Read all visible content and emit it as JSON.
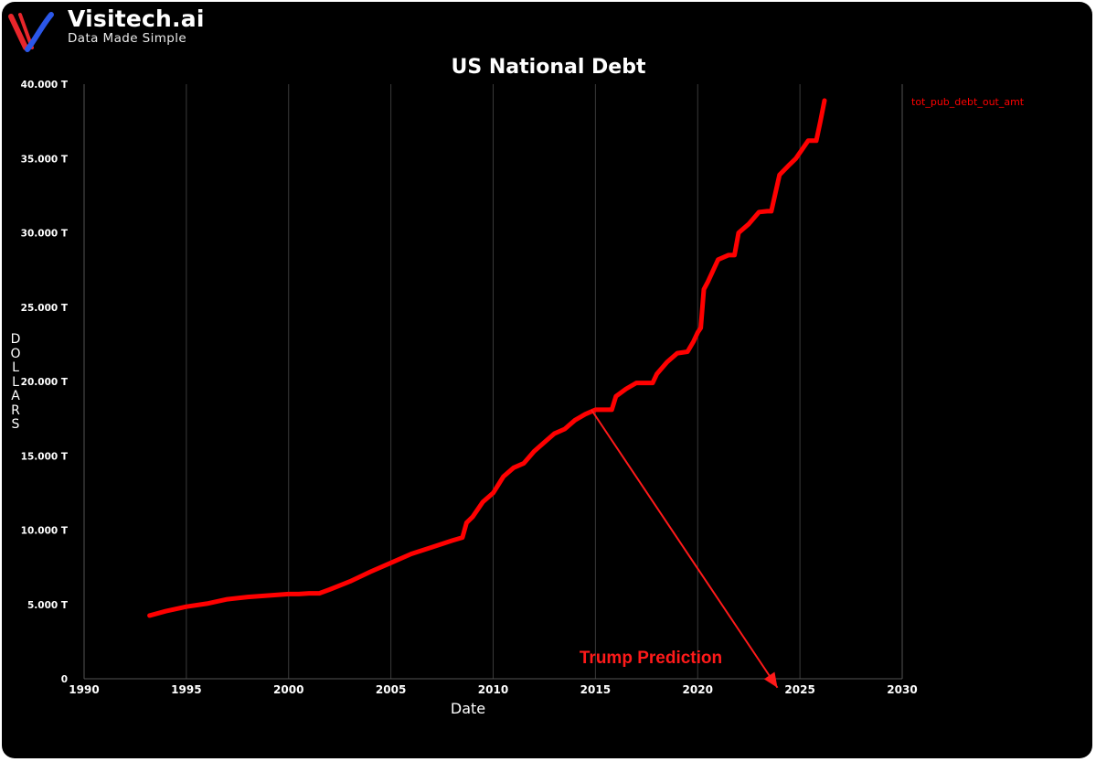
{
  "brand": {
    "name": "Visitech.ai",
    "tagline": "Data Made Simple",
    "logo_icon": "visitech-v-logo-icon",
    "colors": {
      "red": "#e8262b",
      "blue": "#2b57e8"
    }
  },
  "chart_data": {
    "type": "line",
    "title": "US National Debt",
    "xlabel": "Date",
    "ylabel": "DOLLARS",
    "xlim": [
      1990,
      2030
    ],
    "ylim": [
      0,
      40
    ],
    "x_ticks": [
      1990,
      1995,
      2000,
      2005,
      2010,
      2015,
      2020,
      2025,
      2030
    ],
    "x_tick_labels": [
      "1990",
      "1995",
      "2000",
      "2005",
      "2010",
      "2015",
      "2020",
      "2025",
      "2030"
    ],
    "y_ticks": [
      0,
      5,
      10,
      15,
      20,
      25,
      30,
      35,
      40
    ],
    "y_tick_labels": [
      "0",
      "5.000 T",
      "10.000 T",
      "15.000 T",
      "20.000 T",
      "25.000 T",
      "30.000 T",
      "35.000 T",
      "40.000 T"
    ],
    "grid": "vertical",
    "legend_position": "top-right",
    "background": "#000000",
    "series": [
      {
        "name": "tot_pub_debt_out_amt",
        "color": "#ff0000",
        "x": [
          1993.2,
          1994.0,
          1995.0,
          1996.0,
          1997.0,
          1998.0,
          1999.0,
          2000.0,
          2000.5,
          2001.0,
          2001.5,
          2002.0,
          2003.0,
          2004.0,
          2005.0,
          2006.0,
          2007.0,
          2008.0,
          2008.5,
          2008.7,
          2009.0,
          2009.5,
          2010.0,
          2010.5,
          2011.0,
          2011.5,
          2012.0,
          2012.5,
          2013.0,
          2013.5,
          2014.0,
          2014.5,
          2015.0,
          2015.5,
          2015.8,
          2016.0,
          2016.5,
          2017.0,
          2017.3,
          2017.8,
          2018.0,
          2018.5,
          2019.0,
          2019.5,
          2019.8,
          2020.0,
          2020.15,
          2020.3,
          2020.5,
          2021.0,
          2021.5,
          2021.8,
          2022.0,
          2022.5,
          2023.0,
          2023.4,
          2023.6,
          2024.0,
          2024.5,
          2024.8,
          2025.0,
          2025.4,
          2025.8,
          2026.0,
          2026.2
        ],
        "values": [
          4.25,
          4.55,
          4.85,
          5.05,
          5.35,
          5.5,
          5.6,
          5.7,
          5.7,
          5.75,
          5.75,
          6.0,
          6.55,
          7.2,
          7.8,
          8.4,
          8.85,
          9.3,
          9.5,
          10.5,
          10.9,
          11.9,
          12.5,
          13.6,
          14.2,
          14.5,
          15.3,
          15.9,
          16.5,
          16.8,
          17.4,
          17.8,
          18.1,
          18.1,
          18.1,
          19.0,
          19.5,
          19.9,
          19.9,
          19.9,
          20.5,
          21.3,
          21.9,
          22.0,
          22.7,
          23.3,
          23.6,
          26.2,
          26.7,
          28.2,
          28.5,
          28.5,
          30.0,
          30.6,
          31.4,
          31.45,
          31.45,
          33.9,
          34.6,
          35.0,
          35.4,
          36.2,
          36.2,
          37.5,
          38.9
        ]
      }
    ],
    "annotations": [
      {
        "text": "Trump Prediction",
        "color": "#ff1a1a",
        "arrow_from": [
          2014.8,
          18.1
        ],
        "arrow_to": [
          2023.9,
          -0.6
        ]
      }
    ]
  }
}
